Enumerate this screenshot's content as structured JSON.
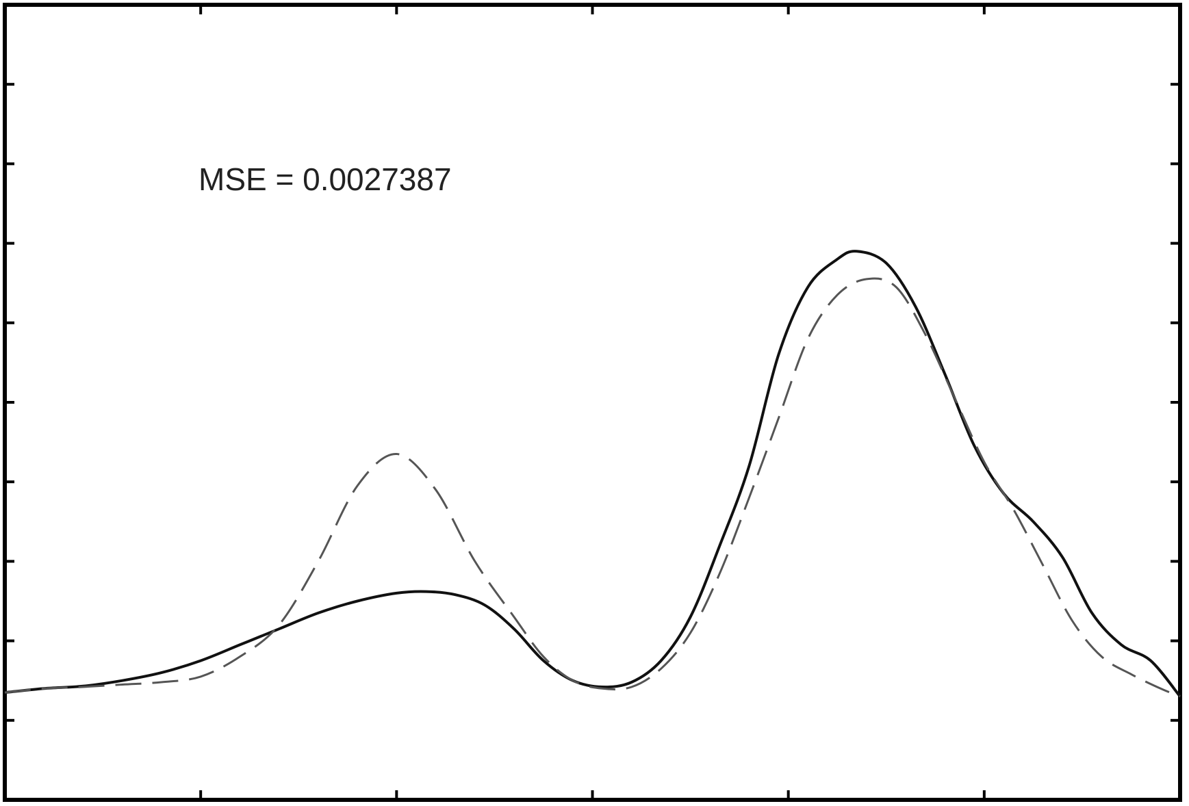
{
  "chart_data": {
    "type": "line",
    "title": "",
    "xlabel": "",
    "ylabel": "",
    "xlim": [
      0,
      6
    ],
    "ylim": [
      0,
      1
    ],
    "xticks": [
      1,
      2,
      3,
      4,
      5
    ],
    "yticks": [
      0.1,
      0.2,
      0.3,
      0.4,
      0.5,
      0.6,
      0.7,
      0.8,
      0.9
    ],
    "grid": false,
    "legend": "none",
    "annotation": "MSE = 0.0027387",
    "series": [
      {
        "style": "solid",
        "color": "#111111",
        "points": [
          [
            0.0,
            0.135
          ],
          [
            0.2,
            0.14
          ],
          [
            0.4,
            0.143
          ],
          [
            0.6,
            0.15
          ],
          [
            0.8,
            0.16
          ],
          [
            1.0,
            0.175
          ],
          [
            1.2,
            0.195
          ],
          [
            1.4,
            0.215
          ],
          [
            1.6,
            0.235
          ],
          [
            1.8,
            0.25
          ],
          [
            2.0,
            0.26
          ],
          [
            2.15,
            0.262
          ],
          [
            2.3,
            0.258
          ],
          [
            2.45,
            0.245
          ],
          [
            2.6,
            0.215
          ],
          [
            2.75,
            0.175
          ],
          [
            2.9,
            0.15
          ],
          [
            3.05,
            0.142
          ],
          [
            3.2,
            0.148
          ],
          [
            3.35,
            0.175
          ],
          [
            3.5,
            0.23
          ],
          [
            3.65,
            0.32
          ],
          [
            3.8,
            0.42
          ],
          [
            3.95,
            0.56
          ],
          [
            4.1,
            0.645
          ],
          [
            4.25,
            0.68
          ],
          [
            4.35,
            0.69
          ],
          [
            4.5,
            0.675
          ],
          [
            4.65,
            0.62
          ],
          [
            4.8,
            0.535
          ],
          [
            4.95,
            0.445
          ],
          [
            5.1,
            0.385
          ],
          [
            5.25,
            0.35
          ],
          [
            5.4,
            0.305
          ],
          [
            5.55,
            0.235
          ],
          [
            5.7,
            0.195
          ],
          [
            5.85,
            0.175
          ],
          [
            6.0,
            0.13
          ]
        ]
      },
      {
        "style": "dashed",
        "color": "#555555",
        "points": [
          [
            0.0,
            0.135
          ],
          [
            0.2,
            0.14
          ],
          [
            0.4,
            0.142
          ],
          [
            0.6,
            0.145
          ],
          [
            0.8,
            0.148
          ],
          [
            1.0,
            0.155
          ],
          [
            1.2,
            0.18
          ],
          [
            1.4,
            0.22
          ],
          [
            1.6,
            0.3
          ],
          [
            1.8,
            0.395
          ],
          [
            2.0,
            0.435
          ],
          [
            2.2,
            0.39
          ],
          [
            2.4,
            0.3
          ],
          [
            2.6,
            0.23
          ],
          [
            2.75,
            0.18
          ],
          [
            2.9,
            0.15
          ],
          [
            3.05,
            0.14
          ],
          [
            3.2,
            0.142
          ],
          [
            3.35,
            0.165
          ],
          [
            3.5,
            0.21
          ],
          [
            3.65,
            0.285
          ],
          [
            3.8,
            0.38
          ],
          [
            3.95,
            0.48
          ],
          [
            4.1,
            0.58
          ],
          [
            4.25,
            0.635
          ],
          [
            4.4,
            0.655
          ],
          [
            4.55,
            0.645
          ],
          [
            4.7,
            0.585
          ],
          [
            4.85,
            0.505
          ],
          [
            5.0,
            0.425
          ],
          [
            5.15,
            0.365
          ],
          [
            5.3,
            0.295
          ],
          [
            5.45,
            0.225
          ],
          [
            5.6,
            0.18
          ],
          [
            5.75,
            0.158
          ],
          [
            5.9,
            0.14
          ],
          [
            6.0,
            0.13
          ]
        ]
      }
    ]
  }
}
